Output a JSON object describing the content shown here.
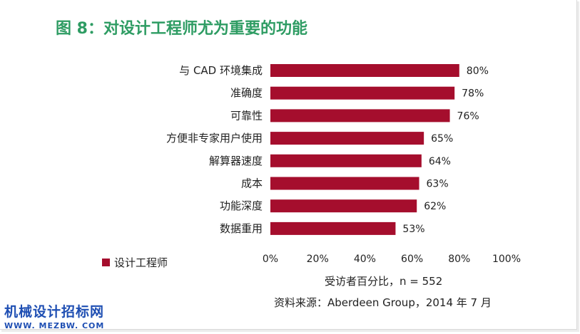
{
  "title": "图 8：对设计工程师尤为重要的功能",
  "legend": {
    "label": "设计工程师",
    "color": "#a50e2d"
  },
  "x_axis_label": "受访者百分比，n = 552",
  "source": "资料来源：Aberdeen Group，2014 年 7 月",
  "watermark": {
    "text": "机械设计招标网",
    "url": "WWW. MEZBW. COM"
  },
  "colors": {
    "title": "#2e9c63",
    "bar": "#a50e2d"
  },
  "chart_data": {
    "type": "bar",
    "orientation": "horizontal",
    "categories": [
      "与 CAD 环境集成",
      "准确度",
      "可靠性",
      "方便非专家用户使用",
      "解算器速度",
      "成本",
      "功能深度",
      "数据重用"
    ],
    "series": [
      {
        "name": "设计工程师",
        "values": [
          80,
          78,
          76,
          65,
          64,
          63,
          62,
          53
        ]
      }
    ],
    "data_labels": [
      "80%",
      "78%",
      "76%",
      "65%",
      "64%",
      "63%",
      "62%",
      "53%"
    ],
    "xlim": [
      0,
      100
    ],
    "x_ticks": [
      0,
      20,
      40,
      60,
      80,
      100
    ],
    "x_tick_labels": [
      "0%",
      "20%",
      "40%",
      "60%",
      "80%",
      "100%"
    ],
    "grid": false,
    "legend_position": "bottom-left"
  }
}
